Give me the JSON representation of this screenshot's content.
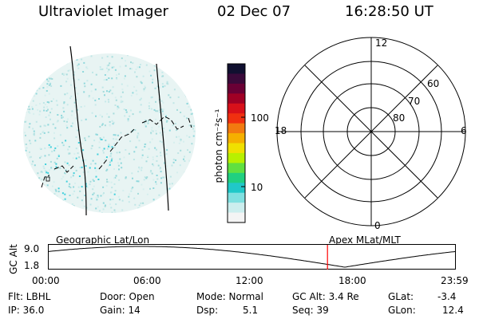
{
  "header": {
    "title": "Ultraviolet Imager",
    "date": "02 Dec 07",
    "time": "16:28:50 UT"
  },
  "colorbar": {
    "label": "photon cm⁻²s⁻¹",
    "ticks": [
      "100",
      "10"
    ],
    "colors": [
      "#101030",
      "#3a0a3a",
      "#6a0035",
      "#a00025",
      "#d8101a",
      "#f03010",
      "#f27a10",
      "#f5b000",
      "#f0e000",
      "#b8f000",
      "#60e040",
      "#20d080",
      "#20c8c8",
      "#80e0e0",
      "#cceeee",
      "#f4f4f4"
    ]
  },
  "polar": {
    "mlt_labels": [
      "12",
      "18",
      "6",
      "0"
    ],
    "lat_labels": [
      "60",
      "70",
      "80"
    ]
  },
  "alt_strip": {
    "left_title": "Geographic Lat/Lon",
    "right_title": "Apex MLat/MLT",
    "ylabel": "GC Alt",
    "yticks": [
      "9.0",
      "1.8"
    ],
    "xticks": [
      "00:00",
      "06:00",
      "12:00",
      "18:00",
      "23:59"
    ],
    "marker_time": "16:28:50",
    "marker_color": "#ff0000",
    "line_color": "#000000"
  },
  "info": {
    "flt": "Flt: LBHL",
    "ip": "IP: 36.0",
    "door": "Door: Open",
    "gain": "Gain: 14",
    "mode": "Mode: Normal",
    "dsp_label": "Dsp:",
    "dsp_value": "5.1",
    "gcalt": "GC Alt: 3.4 Re",
    "seq": "Seq: 39",
    "glat_label": "GLat:",
    "glat_value": "-3.4",
    "glon_label": "GLon:",
    "glon_value": "12.4"
  }
}
